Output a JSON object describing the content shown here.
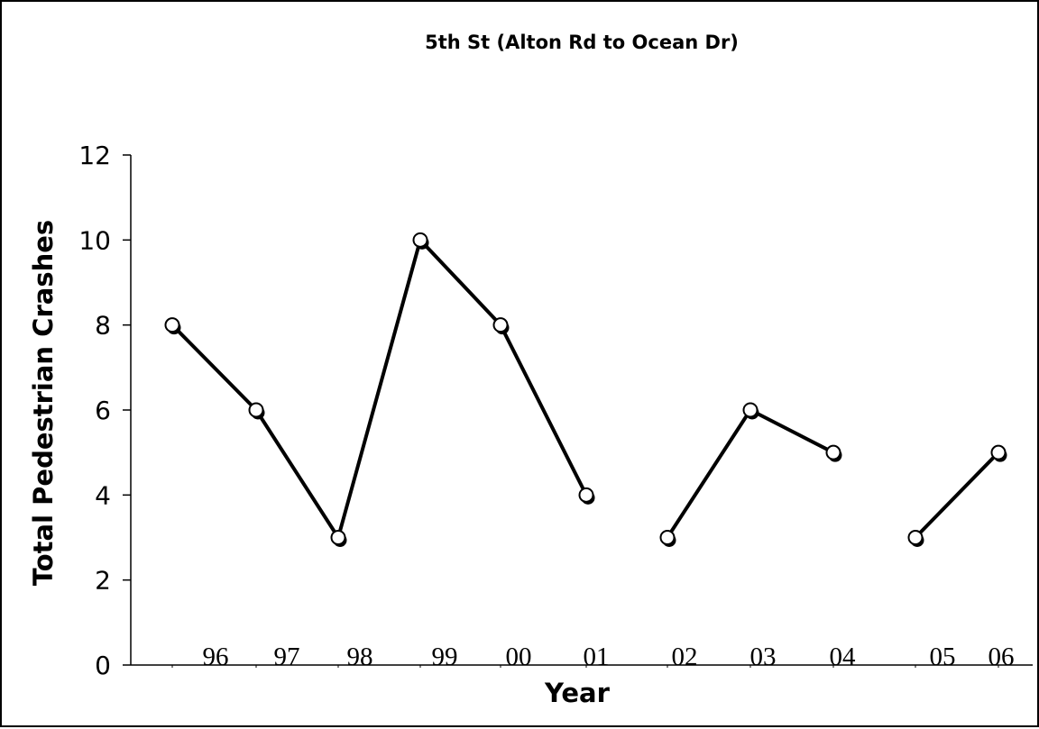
{
  "chart_data": {
    "type": "line",
    "title": "5th St (Alton Rd to Ocean Dr)",
    "xlabel": "Year",
    "ylabel": "Total Pedestrian Crashes",
    "categories": [
      "96",
      "97",
      "98",
      "99",
      "00",
      "01",
      "02",
      "03",
      "04",
      "05",
      "06"
    ],
    "ylim": [
      0,
      12
    ],
    "yticks": [
      "0",
      "2",
      "4",
      "6",
      "8",
      "10",
      "12"
    ],
    "grid": false,
    "legend": "none",
    "line_color": "#000000",
    "marker_fill": "#ffffff",
    "series": [
      {
        "values": [
          8,
          6,
          3,
          10,
          8,
          4,
          3,
          6,
          5,
          3,
          5
        ],
        "segments": [
          [
            0,
            5
          ],
          [
            6,
            8
          ],
          [
            9,
            10
          ]
        ]
      }
    ]
  }
}
